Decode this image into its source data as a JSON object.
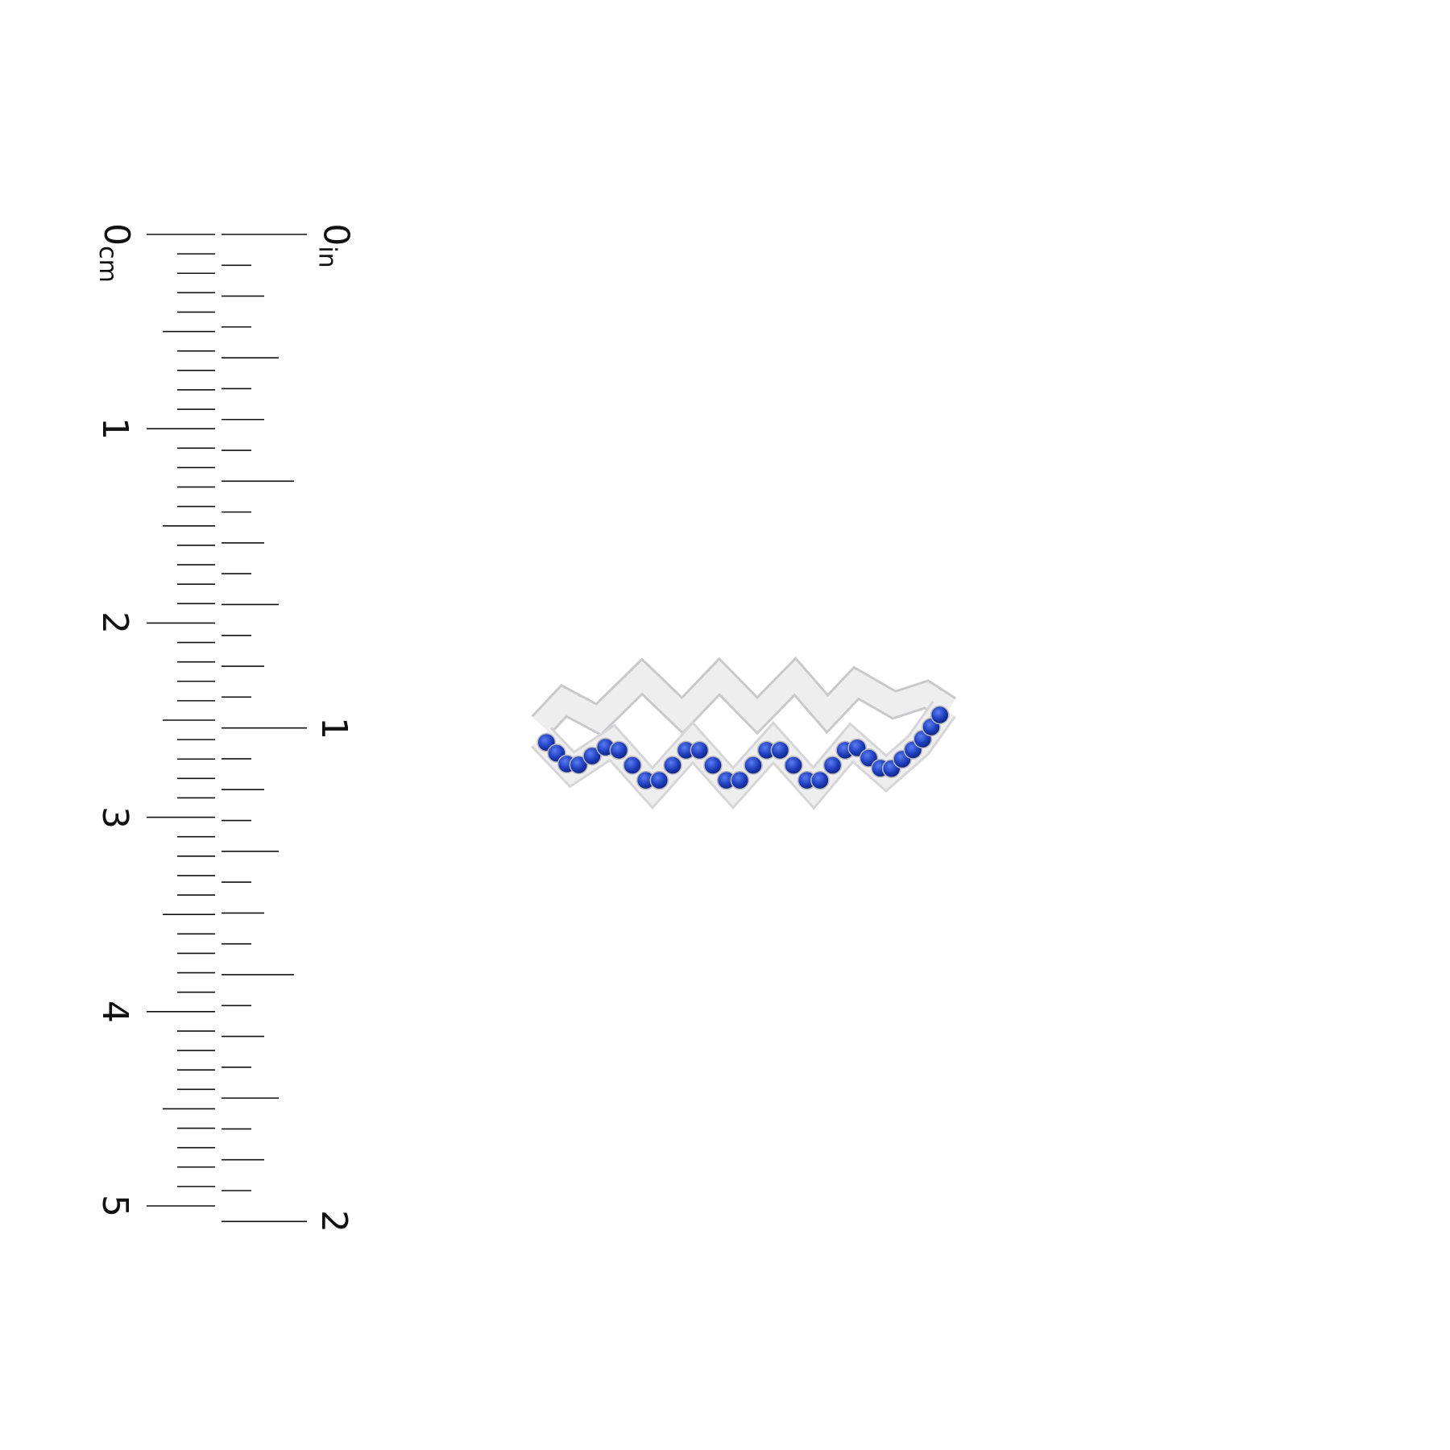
{
  "ruler": {
    "cm_labels": [
      "0",
      "1",
      "2",
      "3",
      "4",
      "5"
    ],
    "cm_unit": "cm",
    "in_labels": [
      "0",
      "1",
      "2"
    ],
    "in_unit": "in",
    "tick_color": "#111111"
  },
  "product": {
    "type": "zigzag ring",
    "metal_color": "#eeeeef",
    "stone_color": "#1f3fbf"
  }
}
